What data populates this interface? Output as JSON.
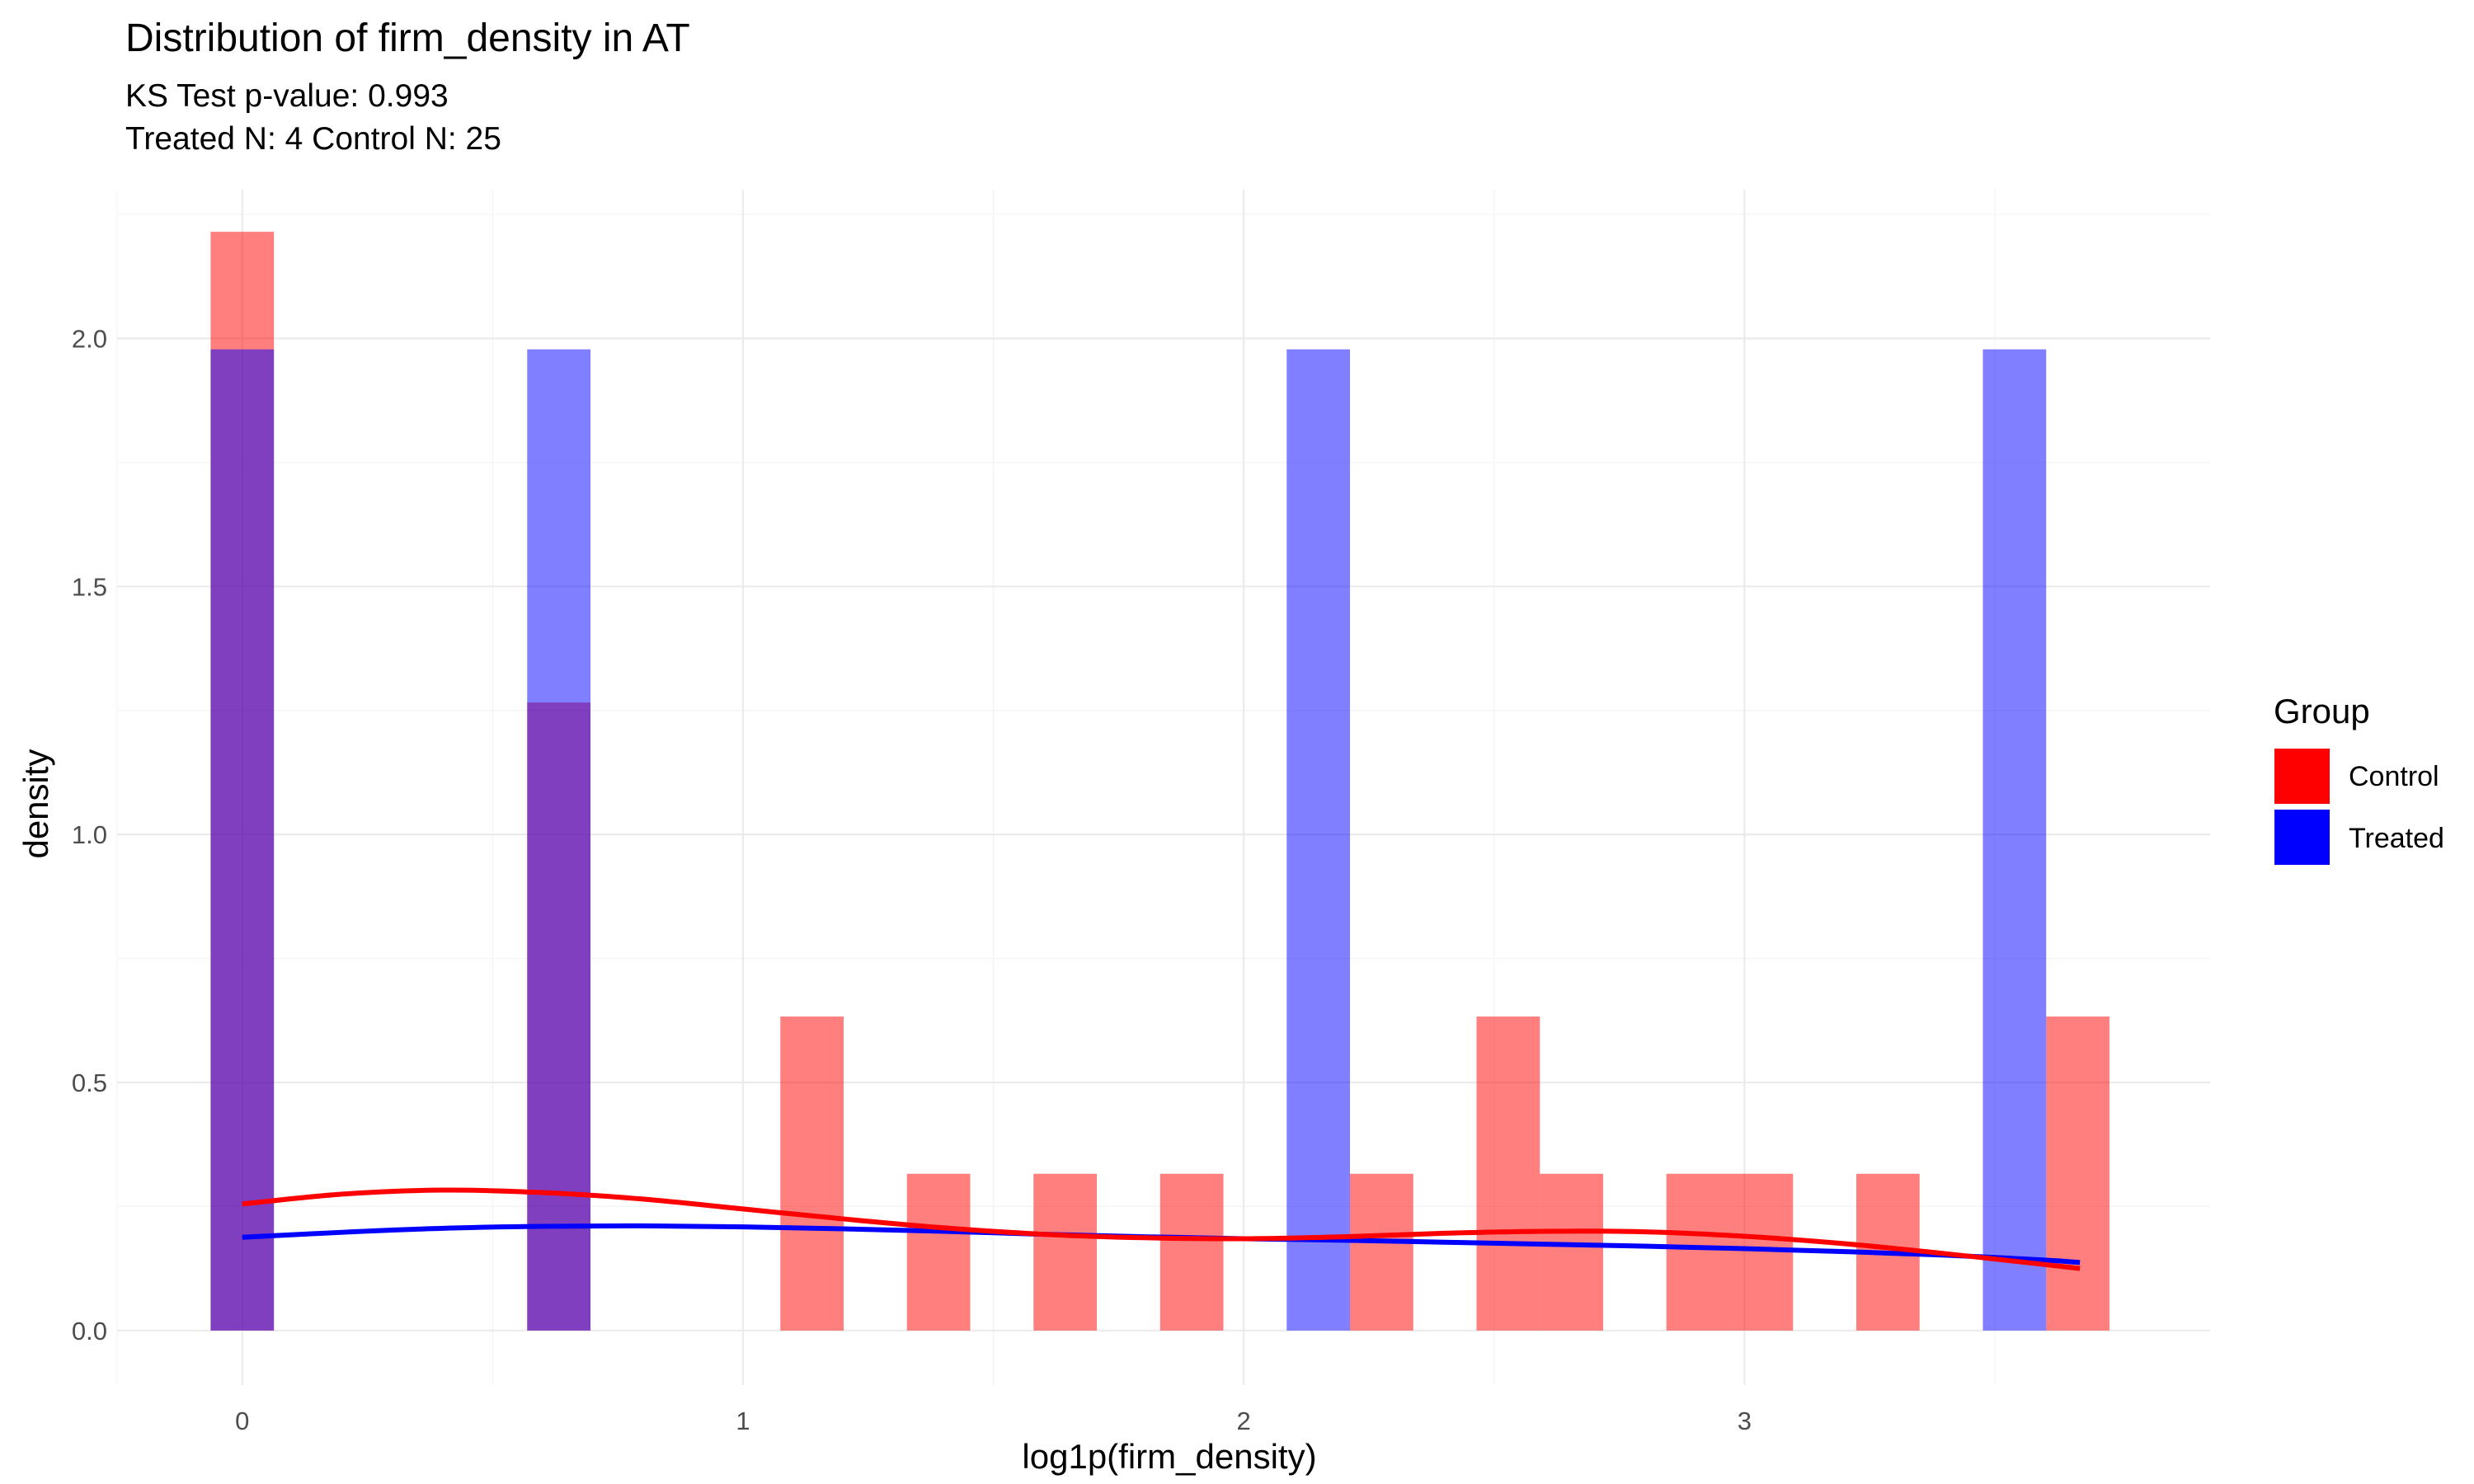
{
  "chart_data": {
    "type": "histogram",
    "title": "Distribution of firm_density in AT",
    "subtitle_lines": [
      "KS Test p-value: 0.993",
      "Treated N: 4 Control N: 25"
    ],
    "xlabel": "log1p(firm_density)",
    "ylabel": "density",
    "xlim": [
      -0.25,
      3.93
    ],
    "ylim": [
      -0.11,
      2.3
    ],
    "x_ticks": [
      0,
      1,
      2,
      3
    ],
    "x_tick_labels": [
      "0",
      "1",
      "2",
      "3"
    ],
    "y_ticks": [
      0.0,
      0.5,
      1.0,
      1.5,
      2.0
    ],
    "y_tick_labels": [
      "0.0",
      "0.5",
      "1.0",
      "1.5",
      "2.0"
    ],
    "grid": true,
    "legend": {
      "title": "Group",
      "position": "right",
      "entries": [
        "Control",
        "Treated"
      ]
    },
    "colors": {
      "Control": "#ff0000",
      "Treated": "#0000ff",
      "bar_alpha": 0.5
    },
    "bin_width": 0.1264,
    "draw_order": [
      "Control",
      "Treated"
    ],
    "series": [
      {
        "name": "Control",
        "bins": [
          {
            "x_start": -0.0632,
            "x_end": 0.0632,
            "density": 2.215
          },
          {
            "x_start": 0.569,
            "x_end": 0.6954,
            "density": 1.266
          },
          {
            "x_start": 1.0746,
            "x_end": 1.201,
            "density": 0.633
          },
          {
            "x_start": 1.3274,
            "x_end": 1.4538,
            "density": 0.316
          },
          {
            "x_start": 1.5802,
            "x_end": 1.7066,
            "density": 0.316
          },
          {
            "x_start": 1.833,
            "x_end": 1.9594,
            "density": 0.316
          },
          {
            "x_start": 2.2122,
            "x_end": 2.3386,
            "density": 0.316
          },
          {
            "x_start": 2.465,
            "x_end": 2.5914,
            "density": 0.633
          },
          {
            "x_start": 2.5914,
            "x_end": 2.7178,
            "density": 0.316
          },
          {
            "x_start": 2.8442,
            "x_end": 2.9706,
            "density": 0.316
          },
          {
            "x_start": 2.9706,
            "x_end": 3.097,
            "density": 0.316
          },
          {
            "x_start": 3.2234,
            "x_end": 3.3498,
            "density": 0.316
          },
          {
            "x_start": 3.6026,
            "x_end": 3.729,
            "density": 0.633
          }
        ],
        "density_curve": {
          "x": [
            0.0,
            0.2,
            0.4,
            0.6,
            0.8,
            1.0,
            1.2,
            1.4,
            1.6,
            1.8,
            2.0,
            2.2,
            2.4,
            2.6,
            2.8,
            3.0,
            3.2,
            3.4,
            3.6,
            3.67
          ],
          "y": [
            0.255,
            0.275,
            0.283,
            0.278,
            0.265,
            0.245,
            0.225,
            0.207,
            0.194,
            0.187,
            0.185,
            0.189,
            0.196,
            0.2,
            0.199,
            0.19,
            0.175,
            0.155,
            0.133,
            0.125
          ]
        }
      },
      {
        "name": "Treated",
        "bins": [
          {
            "x_start": -0.0632,
            "x_end": 0.0632,
            "density": 1.978
          },
          {
            "x_start": 0.569,
            "x_end": 0.6954,
            "density": 1.978
          },
          {
            "x_start": 2.0858,
            "x_end": 2.2122,
            "density": 1.978
          },
          {
            "x_start": 3.4762,
            "x_end": 3.6026,
            "density": 1.978
          }
        ],
        "density_curve": {
          "x": [
            0.0,
            0.2,
            0.4,
            0.6,
            0.8,
            1.0,
            1.2,
            1.4,
            1.6,
            1.8,
            2.0,
            2.2,
            2.4,
            2.6,
            2.8,
            3.0,
            3.2,
            3.4,
            3.6,
            3.67
          ],
          "y": [
            0.188,
            0.198,
            0.206,
            0.21,
            0.211,
            0.209,
            0.205,
            0.2,
            0.194,
            0.189,
            0.185,
            0.182,
            0.178,
            0.174,
            0.17,
            0.165,
            0.159,
            0.152,
            0.142,
            0.137
          ]
        }
      }
    ]
  }
}
